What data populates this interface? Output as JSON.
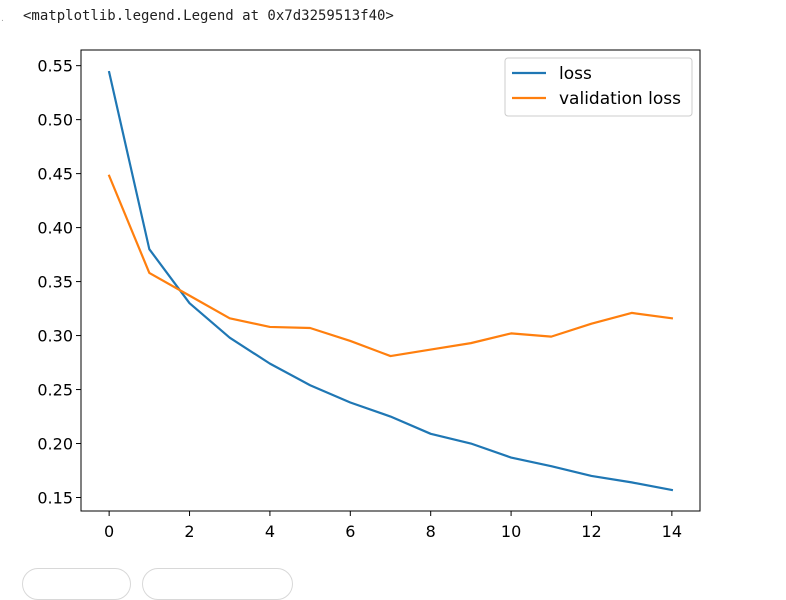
{
  "output": {
    "text": "<matplotlib.legend.Legend at 0x7d3259513f40>",
    "gutter": "."
  },
  "colors": {
    "loss": "#1f77b4",
    "validation_loss": "#ff7f0e"
  },
  "chart_data": {
    "type": "line",
    "x": [
      0,
      1,
      2,
      3,
      4,
      5,
      6,
      7,
      8,
      9,
      10,
      11,
      12,
      13,
      14
    ],
    "series": [
      {
        "name": "loss",
        "color": "#1f77b4",
        "values": [
          0.544,
          0.38,
          0.33,
          0.298,
          0.274,
          0.254,
          0.238,
          0.225,
          0.209,
          0.2,
          0.187,
          0.179,
          0.17,
          0.164,
          0.157
        ]
      },
      {
        "name": "validation loss",
        "color": "#ff7f0e",
        "values": [
          0.448,
          0.358,
          0.337,
          0.316,
          0.308,
          0.307,
          0.295,
          0.281,
          0.287,
          0.293,
          0.302,
          0.299,
          0.311,
          0.321,
          0.316
        ]
      }
    ],
    "xticks": [
      0,
      2,
      4,
      6,
      8,
      10,
      12,
      14
    ],
    "xtick_labels": [
      "0",
      "2",
      "4",
      "6",
      "8",
      "10",
      "12",
      "14"
    ],
    "yticks": [
      0.15,
      0.2,
      0.25,
      0.3,
      0.35,
      0.4,
      0.45,
      0.5,
      0.55
    ],
    "ytick_labels": [
      "0.15",
      "0.20",
      "0.25",
      "0.30",
      "0.35",
      "0.40",
      "0.45",
      "0.50",
      "0.55"
    ],
    "xlim": [
      -0.7,
      14.7
    ],
    "ylim": [
      0.1375,
      0.5645
    ],
    "legend_position": "upper right",
    "grid": false,
    "title": "",
    "xlabel": "",
    "ylabel": ""
  }
}
